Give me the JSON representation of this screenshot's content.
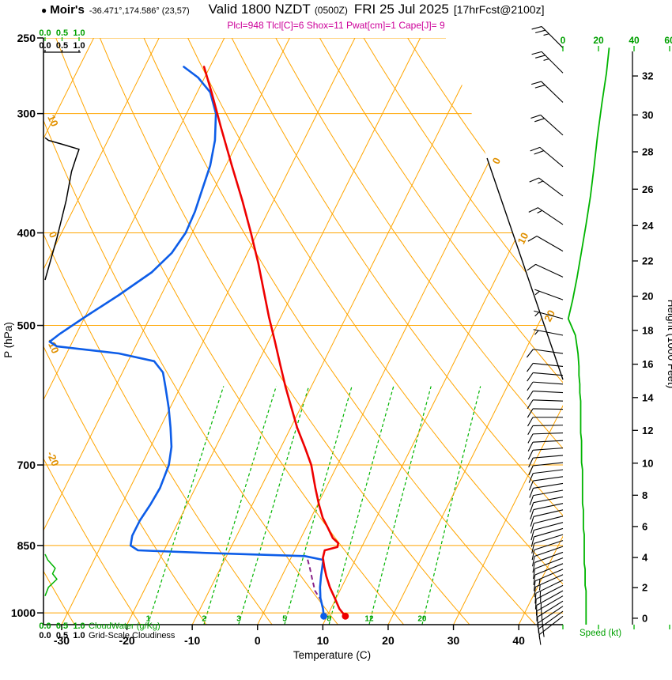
{
  "header": {
    "bullet": "●",
    "station": "Moir's",
    "coords": "-36.471°,174.586° (23,57)",
    "valid_main": "Valid 1800 NZDT",
    "valid_zulu": "(0500Z)",
    "valid_date": "FRI 25 Jul 2025",
    "valid_fcst": "[17hrFcst@2100z]",
    "params": "Plcl=948 Tlcl[C]=6 Shox=11 Pwat[cm]=1 Cape[J]= 9"
  },
  "axes": {
    "pressure_title": "P (hPa)",
    "pressure_ticks": [
      250,
      300,
      400,
      500,
      700,
      850,
      1000
    ],
    "temp_title": "Temperature (C)",
    "temp_ticks": [
      -30,
      -20,
      -10,
      0,
      10,
      20,
      30,
      40
    ],
    "height_title": "Height (1000 Feet)",
    "height_ticks": [
      0,
      2,
      4,
      6,
      8,
      10,
      12,
      14,
      16,
      18,
      20,
      22,
      24,
      26,
      28,
      30,
      32
    ],
    "speed_title": "Speed (kt)",
    "speed_ticks": [
      0,
      20,
      40,
      60
    ],
    "cloud_scale_ticks": [
      "0.0",
      "0.5",
      "1.0"
    ],
    "cloudwater_title": "CloudWater (g/Kg)",
    "cloudiness_title": "Grid-Scale Cloudiness",
    "isotherm_labels": [
      0,
      10,
      20
    ],
    "adiabat_labels": [
      -20,
      -10,
      0,
      10
    ],
    "mixing_labels": [
      1,
      2,
      3,
      5,
      8,
      12,
      20
    ]
  },
  "chart_data": {
    "type": "line",
    "subtype": "skew-t log-p sounding",
    "title": "Valid 1800 NZDT (0500Z) FRI 25 Jul 2025 [17hrFcst@2100z]",
    "xlabel": "Temperature (C)",
    "ylabel": "P (hPa)",
    "y2label": "Height (1000 Feet)",
    "pressure_range_hpa": [
      250,
      1030
    ],
    "temp_axis_range_c": [
      -30,
      40
    ],
    "temperature_profile": {
      "pressure_hpa": [
        1008,
        990,
        965,
        940,
        915,
        895,
        876,
        860,
        853,
        845,
        835,
        815,
        795,
        770,
        740,
        700,
        670,
        640,
        610,
        580,
        550,
        520,
        490,
        460,
        430,
        400,
        370,
        340,
        310,
        285,
        268
      ],
      "temp_c": [
        12.8,
        11.3,
        9.8,
        8.2,
        6.8,
        5.8,
        4.9,
        4.6,
        6.3,
        6.1,
        4.9,
        3.4,
        1.8,
        0.2,
        -1.6,
        -4.0,
        -6.4,
        -9.0,
        -11.4,
        -13.9,
        -16.4,
        -19.0,
        -21.8,
        -24.6,
        -27.6,
        -31.0,
        -34.8,
        -39.1,
        -43.7,
        -47.8,
        -50.9
      ]
    },
    "dewpoint_profile": {
      "pressure_hpa": [
        1008,
        990,
        965,
        940,
        915,
        895,
        880,
        872,
        866,
        860,
        850,
        830,
        800,
        770,
        740,
        700,
        670,
        640,
        610,
        580,
        560,
        545,
        535,
        526,
        520,
        510,
        490,
        465,
        440,
        420,
        400,
        380,
        360,
        340,
        320,
        300,
        285,
        275,
        268
      ],
      "dewpoint_c": [
        9.5,
        8.8,
        7.6,
        6.7,
        6.0,
        5.5,
        5.1,
        2.0,
        -12.0,
        -24.0,
        -25.5,
        -26.0,
        -26.0,
        -25.6,
        -25.4,
        -25.8,
        -26.8,
        -28.4,
        -30.2,
        -32.3,
        -33.8,
        -36.0,
        -42.0,
        -52.0,
        -53.5,
        -52.5,
        -50.0,
        -46.5,
        -43.2,
        -41.6,
        -41.0,
        -41.2,
        -41.8,
        -42.4,
        -43.6,
        -45.5,
        -48.0,
        -51.0,
        -54.0
      ]
    },
    "parcel_path": {
      "pressure_hpa": [
        972,
        948,
        920,
        898,
        874
      ],
      "temp_c": [
        8.0,
        6.2,
        4.8,
        3.7,
        2.4
      ]
    },
    "cloudwater_profile": {
      "pressure_hpa": [
        960,
        940,
        922,
        910,
        898,
        880,
        868
      ],
      "g_per_kg": [
        0,
        0.1,
        0.35,
        0.22,
        0.3,
        0.08,
        0
      ]
    },
    "cloudiness_profile": {
      "pressure_hpa": [
        448,
        405,
        370,
        345,
        333,
        327,
        323,
        320,
        318
      ],
      "fraction": [
        0,
        0.35,
        0.62,
        0.78,
        0.92,
        1.0,
        0.5,
        0.1,
        0
      ]
    },
    "wind_profile": {
      "pressure_hpa": [
        1008,
        996,
        984,
        972,
        960,
        948,
        936,
        924,
        912,
        900,
        888,
        876,
        864,
        852,
        840,
        828,
        816,
        804,
        792,
        780,
        768,
        756,
        744,
        732,
        720,
        708,
        696,
        684,
        672,
        660,
        648,
        636,
        624,
        612,
        600,
        588,
        576,
        564,
        552,
        535,
        512,
        492,
        470,
        445,
        418,
        392,
        366,
        341,
        316,
        292,
        272,
        256
      ],
      "dir_deg": [
        232,
        234,
        236,
        238,
        240,
        241,
        243,
        244,
        246,
        247,
        248,
        249,
        250,
        251,
        252,
        253,
        254,
        255,
        256,
        257,
        258,
        259,
        260,
        261,
        262,
        263,
        264,
        265,
        266,
        267,
        268,
        269,
        270,
        271,
        272,
        273,
        274,
        275,
        276,
        278,
        281,
        285,
        290,
        295,
        300,
        304,
        307,
        310,
        312,
        314,
        315,
        315
      ],
      "speed_kt": [
        13,
        13,
        13,
        13,
        13,
        13,
        12.5,
        12.5,
        12.5,
        12.5,
        12,
        12,
        12,
        12,
        12,
        12,
        11.5,
        11.5,
        11.5,
        11.5,
        11,
        11,
        11,
        11,
        11,
        11,
        10.5,
        10.5,
        10.5,
        10.5,
        10,
        10,
        10,
        10,
        10,
        9.5,
        9.5,
        9,
        9,
        8.5,
        7,
        3,
        5.5,
        8,
        10.5,
        13,
        15.5,
        17.5,
        19.5,
        22,
        24.5,
        26
      ]
    },
    "colors": {
      "temperature": "#ee0000",
      "dewpoint": "#0d5de8",
      "grid": "#ffa500",
      "grid_label": "#e09000",
      "green_line": "#00b400",
      "green_text": "#00a000",
      "parcel": "#882288",
      "params_text": "#cc0099",
      "black": "#000000"
    }
  }
}
